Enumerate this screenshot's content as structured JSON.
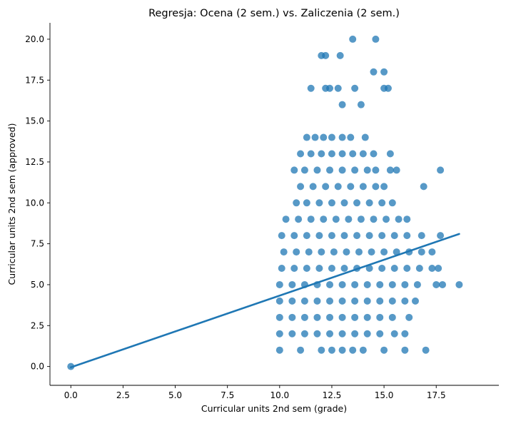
{
  "chart_data": {
    "type": "scatter",
    "title": "Regresja: Ocena (2 sem.) vs. Zaliczenia (2 sem.)",
    "xlabel": "Curricular units 2nd sem (grade)",
    "ylabel": "Curricular units 2nd sem (approved)",
    "xlim": [
      -1.0,
      20.5
    ],
    "ylim": [
      -1.15,
      21.0
    ],
    "x_ticks": [
      "0.0",
      "2.5",
      "5.0",
      "7.5",
      "10.0",
      "12.5",
      "15.0",
      "17.5"
    ],
    "y_ticks": [
      "0.0",
      "2.5",
      "5.0",
      "7.5",
      "10.0",
      "12.5",
      "15.0",
      "17.5",
      "20.0"
    ],
    "grid": false,
    "point_color": "#1f77b4",
    "line_color": "#1f77b4",
    "regression_line": {
      "x": [
        0,
        18.6
      ],
      "y": [
        -0.05,
        8.1
      ]
    },
    "points": [
      {
        "x": 0,
        "y": 0
      },
      {
        "x": 13.5,
        "y": 20
      },
      {
        "x": 14.6,
        "y": 20
      },
      {
        "x": 12.0,
        "y": 19
      },
      {
        "x": 12.2,
        "y": 19
      },
      {
        "x": 12.9,
        "y": 19
      },
      {
        "x": 14.5,
        "y": 18
      },
      {
        "x": 15.0,
        "y": 18
      },
      {
        "x": 11.5,
        "y": 17
      },
      {
        "x": 12.2,
        "y": 17
      },
      {
        "x": 12.4,
        "y": 17
      },
      {
        "x": 12.8,
        "y": 17
      },
      {
        "x": 13.6,
        "y": 17
      },
      {
        "x": 15.0,
        "y": 17
      },
      {
        "x": 15.2,
        "y": 17
      },
      {
        "x": 13.0,
        "y": 16
      },
      {
        "x": 13.9,
        "y": 16
      },
      {
        "x": 11.3,
        "y": 14
      },
      {
        "x": 11.7,
        "y": 14
      },
      {
        "x": 12.1,
        "y": 14
      },
      {
        "x": 12.5,
        "y": 14
      },
      {
        "x": 13.0,
        "y": 14
      },
      {
        "x": 13.4,
        "y": 14
      },
      {
        "x": 14.1,
        "y": 14
      },
      {
        "x": 11.0,
        "y": 13
      },
      {
        "x": 11.5,
        "y": 13
      },
      {
        "x": 12.0,
        "y": 13
      },
      {
        "x": 12.5,
        "y": 13
      },
      {
        "x": 13.0,
        "y": 13
      },
      {
        "x": 13.5,
        "y": 13
      },
      {
        "x": 14.0,
        "y": 13
      },
      {
        "x": 14.5,
        "y": 13
      },
      {
        "x": 15.3,
        "y": 13
      },
      {
        "x": 10.7,
        "y": 12
      },
      {
        "x": 11.2,
        "y": 12
      },
      {
        "x": 11.8,
        "y": 12
      },
      {
        "x": 12.4,
        "y": 12
      },
      {
        "x": 13.0,
        "y": 12
      },
      {
        "x": 13.6,
        "y": 12
      },
      {
        "x": 14.2,
        "y": 12
      },
      {
        "x": 14.6,
        "y": 12
      },
      {
        "x": 15.3,
        "y": 12
      },
      {
        "x": 15.6,
        "y": 12
      },
      {
        "x": 17.7,
        "y": 12
      },
      {
        "x": 11.0,
        "y": 11
      },
      {
        "x": 11.6,
        "y": 11
      },
      {
        "x": 12.2,
        "y": 11
      },
      {
        "x": 12.8,
        "y": 11
      },
      {
        "x": 13.4,
        "y": 11
      },
      {
        "x": 14.0,
        "y": 11
      },
      {
        "x": 14.6,
        "y": 11
      },
      {
        "x": 15.0,
        "y": 11
      },
      {
        "x": 16.9,
        "y": 11
      },
      {
        "x": 10.8,
        "y": 10
      },
      {
        "x": 11.3,
        "y": 10
      },
      {
        "x": 11.9,
        "y": 10
      },
      {
        "x": 12.5,
        "y": 10
      },
      {
        "x": 13.1,
        "y": 10
      },
      {
        "x": 13.7,
        "y": 10
      },
      {
        "x": 14.3,
        "y": 10
      },
      {
        "x": 14.9,
        "y": 10
      },
      {
        "x": 15.4,
        "y": 10
      },
      {
        "x": 10.3,
        "y": 9
      },
      {
        "x": 10.9,
        "y": 9
      },
      {
        "x": 11.5,
        "y": 9
      },
      {
        "x": 12.1,
        "y": 9
      },
      {
        "x": 12.7,
        "y": 9
      },
      {
        "x": 13.3,
        "y": 9
      },
      {
        "x": 13.9,
        "y": 9
      },
      {
        "x": 14.5,
        "y": 9
      },
      {
        "x": 15.1,
        "y": 9
      },
      {
        "x": 15.7,
        "y": 9
      },
      {
        "x": 16.1,
        "y": 9
      },
      {
        "x": 10.1,
        "y": 8
      },
      {
        "x": 10.7,
        "y": 8
      },
      {
        "x": 11.3,
        "y": 8
      },
      {
        "x": 11.9,
        "y": 8
      },
      {
        "x": 12.5,
        "y": 8
      },
      {
        "x": 13.1,
        "y": 8
      },
      {
        "x": 13.7,
        "y": 8
      },
      {
        "x": 14.3,
        "y": 8
      },
      {
        "x": 14.9,
        "y": 8
      },
      {
        "x": 15.5,
        "y": 8
      },
      {
        "x": 16.1,
        "y": 8
      },
      {
        "x": 16.8,
        "y": 8
      },
      {
        "x": 17.7,
        "y": 8
      },
      {
        "x": 10.2,
        "y": 7
      },
      {
        "x": 10.8,
        "y": 7
      },
      {
        "x": 11.4,
        "y": 7
      },
      {
        "x": 12.0,
        "y": 7
      },
      {
        "x": 12.6,
        "y": 7
      },
      {
        "x": 13.2,
        "y": 7
      },
      {
        "x": 13.8,
        "y": 7
      },
      {
        "x": 14.4,
        "y": 7
      },
      {
        "x": 15.0,
        "y": 7
      },
      {
        "x": 15.6,
        "y": 7
      },
      {
        "x": 16.2,
        "y": 7
      },
      {
        "x": 16.8,
        "y": 7
      },
      {
        "x": 17.3,
        "y": 7
      },
      {
        "x": 10.1,
        "y": 6
      },
      {
        "x": 10.7,
        "y": 6
      },
      {
        "x": 11.3,
        "y": 6
      },
      {
        "x": 11.9,
        "y": 6
      },
      {
        "x": 12.5,
        "y": 6
      },
      {
        "x": 13.1,
        "y": 6
      },
      {
        "x": 13.7,
        "y": 6
      },
      {
        "x": 14.3,
        "y": 6
      },
      {
        "x": 14.9,
        "y": 6
      },
      {
        "x": 15.5,
        "y": 6
      },
      {
        "x": 16.1,
        "y": 6
      },
      {
        "x": 16.7,
        "y": 6
      },
      {
        "x": 17.3,
        "y": 6
      },
      {
        "x": 17.6,
        "y": 6
      },
      {
        "x": 10.0,
        "y": 5
      },
      {
        "x": 10.6,
        "y": 5
      },
      {
        "x": 11.2,
        "y": 5
      },
      {
        "x": 11.8,
        "y": 5
      },
      {
        "x": 12.4,
        "y": 5
      },
      {
        "x": 13.0,
        "y": 5
      },
      {
        "x": 13.6,
        "y": 5
      },
      {
        "x": 14.2,
        "y": 5
      },
      {
        "x": 14.8,
        "y": 5
      },
      {
        "x": 15.4,
        "y": 5
      },
      {
        "x": 16.0,
        "y": 5
      },
      {
        "x": 16.6,
        "y": 5
      },
      {
        "x": 17.5,
        "y": 5
      },
      {
        "x": 17.8,
        "y": 5
      },
      {
        "x": 18.6,
        "y": 5
      },
      {
        "x": 10.0,
        "y": 4
      },
      {
        "x": 10.6,
        "y": 4
      },
      {
        "x": 11.2,
        "y": 4
      },
      {
        "x": 11.8,
        "y": 4
      },
      {
        "x": 12.4,
        "y": 4
      },
      {
        "x": 13.0,
        "y": 4
      },
      {
        "x": 13.6,
        "y": 4
      },
      {
        "x": 14.2,
        "y": 4
      },
      {
        "x": 14.8,
        "y": 4
      },
      {
        "x": 15.4,
        "y": 4
      },
      {
        "x": 16.0,
        "y": 4
      },
      {
        "x": 16.5,
        "y": 4
      },
      {
        "x": 10.0,
        "y": 3
      },
      {
        "x": 10.6,
        "y": 3
      },
      {
        "x": 11.2,
        "y": 3
      },
      {
        "x": 11.8,
        "y": 3
      },
      {
        "x": 12.4,
        "y": 3
      },
      {
        "x": 13.0,
        "y": 3
      },
      {
        "x": 13.6,
        "y": 3
      },
      {
        "x": 14.2,
        "y": 3
      },
      {
        "x": 14.8,
        "y": 3
      },
      {
        "x": 15.4,
        "y": 3
      },
      {
        "x": 16.2,
        "y": 3
      },
      {
        "x": 10.0,
        "y": 2
      },
      {
        "x": 10.6,
        "y": 2
      },
      {
        "x": 11.2,
        "y": 2
      },
      {
        "x": 11.8,
        "y": 2
      },
      {
        "x": 12.4,
        "y": 2
      },
      {
        "x": 13.0,
        "y": 2
      },
      {
        "x": 13.6,
        "y": 2
      },
      {
        "x": 14.2,
        "y": 2
      },
      {
        "x": 14.8,
        "y": 2
      },
      {
        "x": 15.5,
        "y": 2
      },
      {
        "x": 16.0,
        "y": 2
      },
      {
        "x": 10.0,
        "y": 1
      },
      {
        "x": 11.0,
        "y": 1
      },
      {
        "x": 12.0,
        "y": 1
      },
      {
        "x": 12.5,
        "y": 1
      },
      {
        "x": 13.0,
        "y": 1
      },
      {
        "x": 13.5,
        "y": 1
      },
      {
        "x": 14.0,
        "y": 1
      },
      {
        "x": 15.0,
        "y": 1
      },
      {
        "x": 16.0,
        "y": 1
      },
      {
        "x": 17.0,
        "y": 1
      }
    ]
  }
}
